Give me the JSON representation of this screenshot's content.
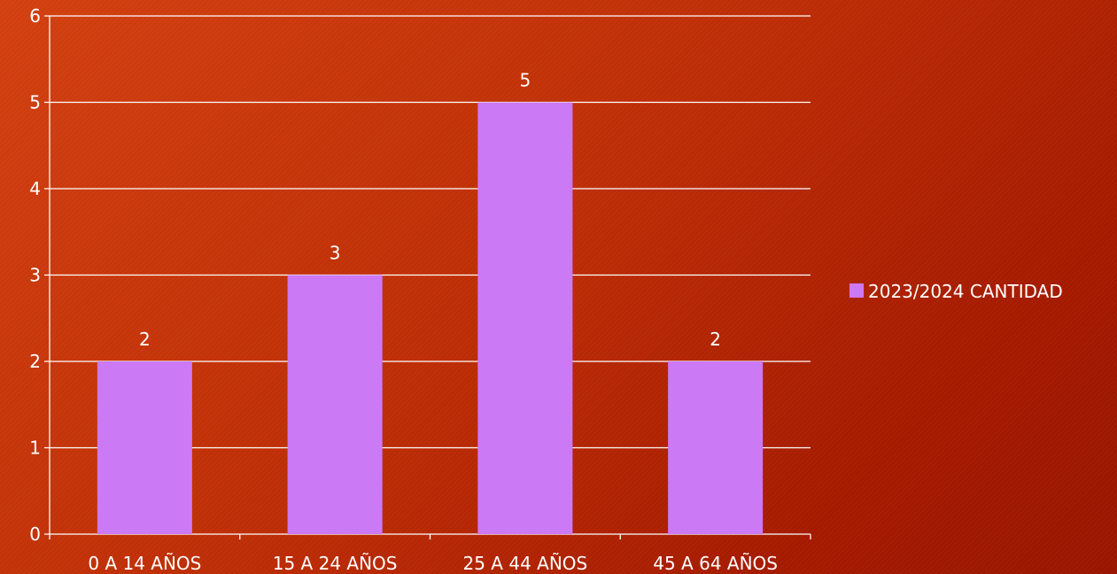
{
  "chart_data": {
    "type": "bar",
    "categories": [
      "0 A 14 AÑOS",
      "15 A 24 AÑOS",
      "25 A 44 AÑOS",
      "45 A 64 AÑOS"
    ],
    "series": [
      {
        "name": "2023/2024 CANTIDAD",
        "values": [
          2,
          3,
          5,
          2
        ],
        "color": "#cc79f5"
      }
    ],
    "ylim": [
      0,
      6
    ],
    "yticks": [
      "0",
      "1",
      "2",
      "3",
      "4",
      "5",
      "6"
    ],
    "data_labels": [
      "2",
      "3",
      "5",
      "2"
    ],
    "grid": true,
    "legend_position": "right",
    "title": "",
    "xlabel": "",
    "ylabel": ""
  }
}
